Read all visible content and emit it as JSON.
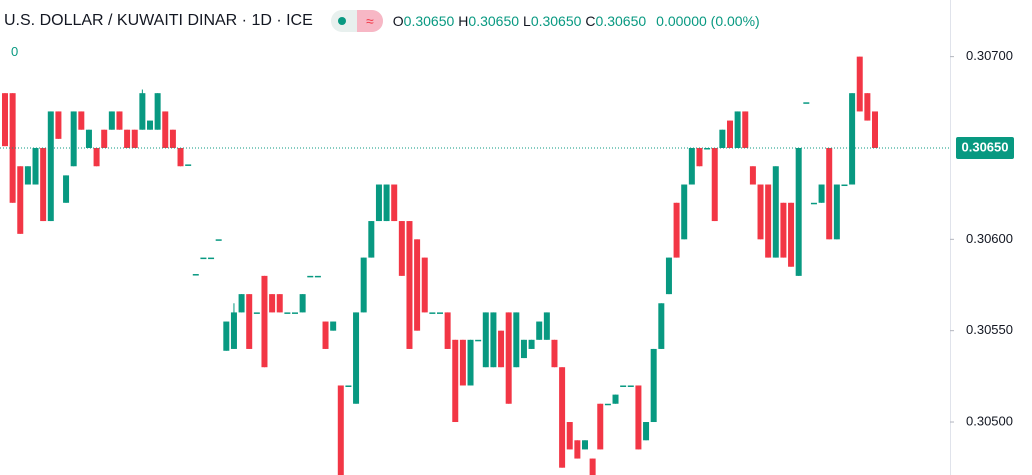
{
  "chart_data": {
    "type": "candlestick",
    "title": "U.S. DOLLAR / KUWAITI DINAR · 1D · ICE",
    "volume_label": "0",
    "ohlc": [
      {
        "key": "O",
        "value": "0.30650"
      },
      {
        "key": "H",
        "value": "0.30650"
      },
      {
        "key": "L",
        "value": "0.30650"
      },
      {
        "key": "C",
        "value": "0.30650"
      }
    ],
    "change": "0.00000 (0.00%)",
    "up_color": "#089981",
    "down_color": "#f23645",
    "ylim": [
      0.30471,
      0.30731
    ],
    "yticks": [
      {
        "value": 0.305,
        "label": "0.30500"
      },
      {
        "value": 0.3055,
        "label": "0.30550"
      },
      {
        "value": 0.306,
        "label": "0.30600"
      },
      {
        "value": 0.307,
        "label": "0.30700"
      }
    ],
    "last_price": {
      "value": 0.3065,
      "label": "0.30650"
    },
    "open": [
      0.3068,
      0.3068,
      0.3064,
      0.3063,
      0.3063,
      0.3065,
      0.3061,
      0.3067,
      0.3062,
      0.3064,
      0.3067,
      0.3065,
      0.3065,
      0.3066,
      0.3066,
      0.3067,
      0.3066,
      0.3066,
      0.3066,
      0.3066,
      0.3066,
      0.3067,
      0.3066,
      0.3065,
      0.30641,
      0.30581,
      0.3059,
      0.3059,
      0.306,
      0.30539,
      0.3054,
      0.3056,
      0.3057,
      0.3056,
      0.3058,
      0.3057,
      0.3057,
      0.3056,
      0.3056,
      0.3056,
      0.3058,
      0.3058,
      0.30555,
      0.3055,
      0.3052,
      0.3052,
      0.3051,
      0.3056,
      0.3059,
      0.3061,
      0.3061,
      0.3063,
      0.3061,
      0.3061,
      0.306,
      0.3059,
      0.3056,
      0.3056,
      0.3056,
      0.30545,
      0.30545,
      0.3052,
      0.30545,
      0.3053,
      0.3053,
      0.3055,
      0.3056,
      0.3053,
      0.30535,
      0.3054,
      0.30545,
      0.30545,
      0.30545,
      0.3053,
      0.305,
      0.3049,
      0.30485,
      0.3048,
      0.3051,
      0.3051,
      0.3051,
      0.3052,
      0.3052,
      0.3052,
      0.3049,
      0.305,
      0.3054,
      0.3057,
      0.3062,
      0.306,
      0.3063,
      0.3065,
      0.3065,
      0.3065,
      0.3065,
      0.30665,
      0.3065,
      0.3067,
      0.3064,
      0.3063,
      0.3063,
      0.3059,
      0.3062,
      0.3062,
      0.3058,
      0.30675,
      0.3062,
      0.3062,
      0.3065,
      0.306,
      0.3063,
      0.3063,
      0.307,
      0.3068,
      0.3067
    ],
    "high": [
      0.3068,
      0.3068,
      0.3064,
      0.3064,
      0.3065,
      0.3065,
      0.3067,
      0.3067,
      0.30635,
      0.3067,
      0.3067,
      0.3066,
      0.3065,
      0.3066,
      0.3067,
      0.3067,
      0.3066,
      0.3066,
      0.30682,
      0.30665,
      0.3068,
      0.3067,
      0.3066,
      0.3065,
      0.30641,
      0.30581,
      0.3059,
      0.3059,
      0.306,
      0.30555,
      0.30565,
      0.3057,
      0.3057,
      0.3056,
      0.3058,
      0.3057,
      0.3057,
      0.3056,
      0.3056,
      0.3057,
      0.3058,
      0.3058,
      0.30555,
      0.30555,
      0.3052,
      0.3052,
      0.3056,
      0.3059,
      0.3061,
      0.3063,
      0.3063,
      0.3063,
      0.3061,
      0.3061,
      0.306,
      0.3059,
      0.3056,
      0.3056,
      0.3056,
      0.30545,
      0.30545,
      0.30545,
      0.30545,
      0.3056,
      0.3056,
      0.3055,
      0.3056,
      0.3056,
      0.30545,
      0.30545,
      0.30555,
      0.3056,
      0.30545,
      0.3053,
      0.305,
      0.3049,
      0.3049,
      0.3048,
      0.3051,
      0.3051,
      0.30515,
      0.3052,
      0.3052,
      0.3052,
      0.305,
      0.3054,
      0.30565,
      0.3059,
      0.3062,
      0.3063,
      0.3065,
      0.3065,
      0.3065,
      0.3065,
      0.3066,
      0.30665,
      0.3067,
      0.3067,
      0.3064,
      0.3063,
      0.3063,
      0.3064,
      0.3062,
      0.3062,
      0.3065,
      0.30675,
      0.3062,
      0.3063,
      0.3065,
      0.3063,
      0.3063,
      0.3068,
      0.307,
      0.3068,
      0.3067
    ],
    "low": [
      0.30651,
      0.3062,
      0.30603,
      0.3063,
      0.3063,
      0.3061,
      0.3061,
      0.30655,
      0.3062,
      0.3064,
      0.3066,
      0.3065,
      0.3064,
      0.3065,
      0.3066,
      0.3066,
      0.3065,
      0.3065,
      0.3066,
      0.3066,
      0.3066,
      0.3065,
      0.3065,
      0.3064,
      0.30641,
      0.30581,
      0.3059,
      0.3059,
      0.306,
      0.30539,
      0.3054,
      0.3056,
      0.3054,
      0.3056,
      0.3053,
      0.3056,
      0.3056,
      0.3056,
      0.3056,
      0.3056,
      0.3058,
      0.3058,
      0.3054,
      0.3055,
      0.3047,
      0.3052,
      0.3051,
      0.3056,
      0.3059,
      0.3061,
      0.3061,
      0.3061,
      0.3058,
      0.3054,
      0.3055,
      0.3056,
      0.3056,
      0.3056,
      0.3054,
      0.305,
      0.3052,
      0.3052,
      0.30545,
      0.3053,
      0.3053,
      0.3053,
      0.3051,
      0.3053,
      0.30535,
      0.3054,
      0.30545,
      0.30545,
      0.3053,
      0.30475,
      0.30485,
      0.3048,
      0.30485,
      0.3047,
      0.30485,
      0.3051,
      0.3051,
      0.3052,
      0.3052,
      0.30485,
      0.3049,
      0.305,
      0.3054,
      0.3057,
      0.3059,
      0.306,
      0.3063,
      0.3064,
      0.3065,
      0.3061,
      0.3065,
      0.3065,
      0.3065,
      0.3065,
      0.3063,
      0.306,
      0.3059,
      0.3059,
      0.3059,
      0.30585,
      0.3058,
      0.30675,
      0.3062,
      0.3062,
      0.306,
      0.306,
      0.3063,
      0.3063,
      0.3067,
      0.30665,
      0.3065
    ],
    "close": [
      0.30651,
      0.3062,
      0.30603,
      0.3064,
      0.3065,
      0.3061,
      0.3067,
      0.30655,
      0.30635,
      0.3067,
      0.3066,
      0.3066,
      0.3064,
      0.3065,
      0.3067,
      0.3066,
      0.3065,
      0.3065,
      0.3068,
      0.30665,
      0.3068,
      0.3065,
      0.3065,
      0.3064,
      0.30641,
      0.30581,
      0.3059,
      0.3059,
      0.306,
      0.30555,
      0.3056,
      0.3057,
      0.3054,
      0.3056,
      0.3053,
      0.3056,
      0.3056,
      0.3056,
      0.3056,
      0.3057,
      0.3058,
      0.3058,
      0.3054,
      0.30555,
      0.3047,
      0.3052,
      0.3056,
      0.3059,
      0.3061,
      0.3063,
      0.3063,
      0.3061,
      0.3058,
      0.3054,
      0.3055,
      0.3056,
      0.3056,
      0.3056,
      0.3054,
      0.305,
      0.3052,
      0.30545,
      0.30545,
      0.3056,
      0.3056,
      0.3053,
      0.3051,
      0.3056,
      0.30545,
      0.30545,
      0.30555,
      0.3056,
      0.3053,
      0.30475,
      0.30485,
      0.3048,
      0.3049,
      0.3047,
      0.30485,
      0.3051,
      0.30515,
      0.3052,
      0.3052,
      0.30485,
      0.305,
      0.3054,
      0.30565,
      0.3059,
      0.3059,
      0.3063,
      0.3065,
      0.3064,
      0.3065,
      0.3061,
      0.3066,
      0.3065,
      0.3067,
      0.3065,
      0.3063,
      0.306,
      0.3059,
      0.3064,
      0.3059,
      0.30585,
      0.3065,
      0.30675,
      0.3062,
      0.3063,
      0.306,
      0.3063,
      0.3063,
      0.3068,
      0.3067,
      0.30665,
      0.3065
    ]
  }
}
